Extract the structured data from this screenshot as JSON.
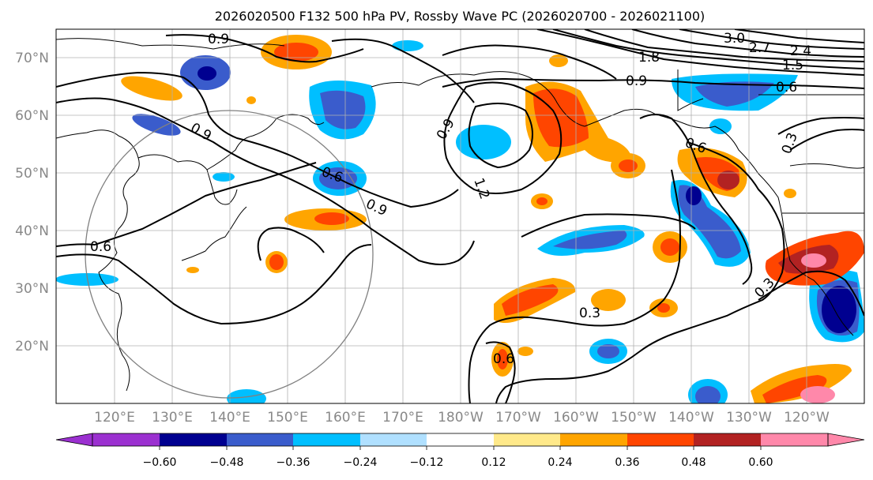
{
  "title": "2026020500 F132 500 hPa PV, Rossby Wave PC (2026020700 - 2026021100)",
  "map": {
    "lat_labels": [
      "70°N",
      "60°N",
      "50°N",
      "40°N",
      "30°N",
      "20°N"
    ],
    "lon_labels": [
      "120°E",
      "130°E",
      "140°E",
      "150°E",
      "160°E",
      "170°E",
      "180°W",
      "170°W",
      "160°W",
      "150°W",
      "140°W",
      "130°W",
      "120°W"
    ],
    "contour_labels": [
      "0.9",
      "0.9",
      "0.6",
      "0.9",
      "0.6",
      "0.9",
      "1.2",
      "1.8",
      "3.0",
      "2.7",
      "2.4",
      "1.5",
      "0.9",
      "0.6",
      "0.6",
      "0.3",
      "0.3",
      "0.3",
      "0.6"
    ],
    "colors": {
      "land_outline": "#000000",
      "grid": "#b0b0b0",
      "contour": "#000000",
      "circle": "#808080"
    }
  },
  "colorbar": {
    "tick_labels": [
      "−0.60",
      "−0.48",
      "−0.36",
      "−0.24",
      "−0.12",
      "0.12",
      "0.24",
      "0.36",
      "0.48",
      "0.60"
    ],
    "colors": [
      "#9b30d0",
      "#000090",
      "#3a5ccc",
      "#00bfff",
      "#b0e0ff",
      "#ffffff",
      "#ffe98a",
      "#ffa500",
      "#ff4500",
      "#b22222",
      "#ff88aa"
    ]
  }
}
